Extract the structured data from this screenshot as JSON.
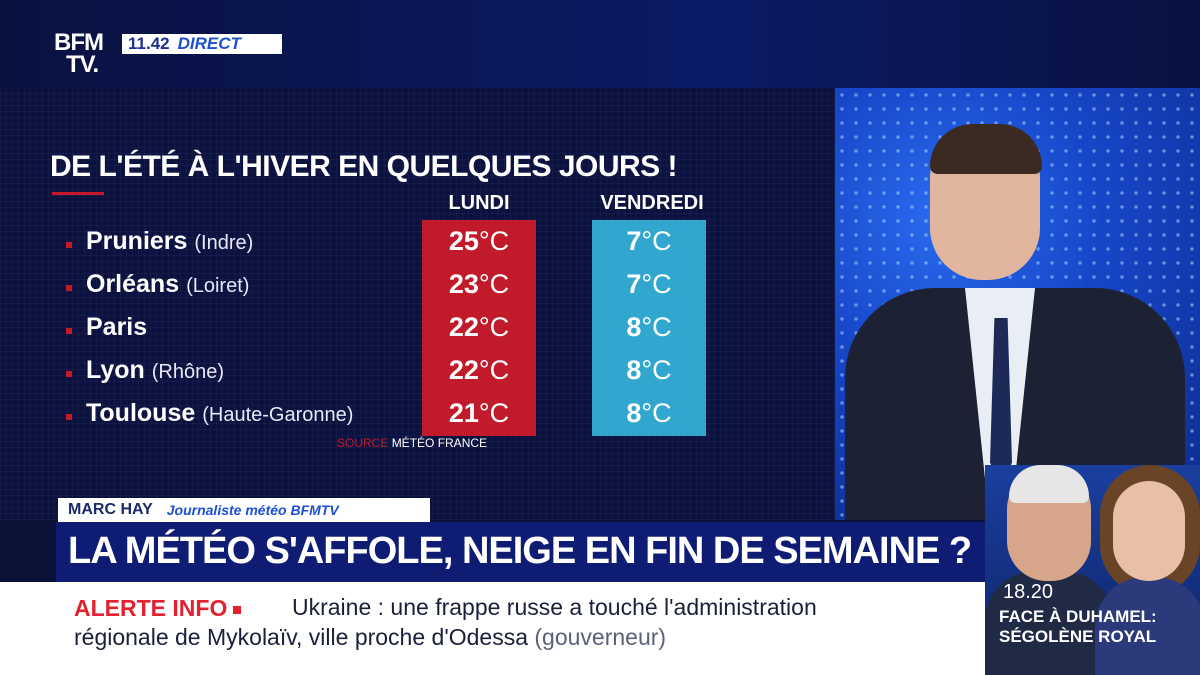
{
  "channel": {
    "logo_line1": "BFM",
    "logo_line2": "TV.",
    "time": "11.42",
    "live_label": "DIRECT"
  },
  "graphic": {
    "title": "DE L'ÉTÉ À L'HIVER EN QUELQUES JOURS !",
    "col_monday": "LUNDI",
    "col_friday": "VENDREDI",
    "unit": "°C",
    "rows": [
      {
        "city": "Pruniers",
        "region": "(Indre)",
        "monday": "25",
        "friday": "7"
      },
      {
        "city": "Orléans",
        "region": "(Loiret)",
        "monday": "23",
        "friday": "7"
      },
      {
        "city": "Paris",
        "region": "",
        "monday": "22",
        "friday": "8"
      },
      {
        "city": "Lyon",
        "region": "(Rhône)",
        "monday": "22",
        "friday": "8"
      },
      {
        "city": "Toulouse",
        "region": "(Haute-Garonne)",
        "monday": "21",
        "friday": "8"
      }
    ],
    "source_label": "SOURCE",
    "source_value": "MÉTÉO FRANCE",
    "colors": {
      "monday": "#c11a2b",
      "friday": "#31a7d0",
      "accent": "#c2192b"
    }
  },
  "lower_third": {
    "name": "MARC HAY",
    "role": "Journaliste météo BFMTV",
    "headline": "LA MÉTÉO S'AFFOLE, NEIGE EN FIN DE SEMAINE ?"
  },
  "ticker": {
    "label": "ALERTE INFO",
    "line1": "Ukraine : une frappe russe a touché l'administration",
    "line2": "régionale de Mykolaïv, ville proche d'Odessa",
    "source": "(gouverneur)"
  },
  "promo": {
    "time": "18.20",
    "line1": "FACE À DUHAMEL:",
    "line2": "SÉGOLÈNE ROYAL"
  }
}
